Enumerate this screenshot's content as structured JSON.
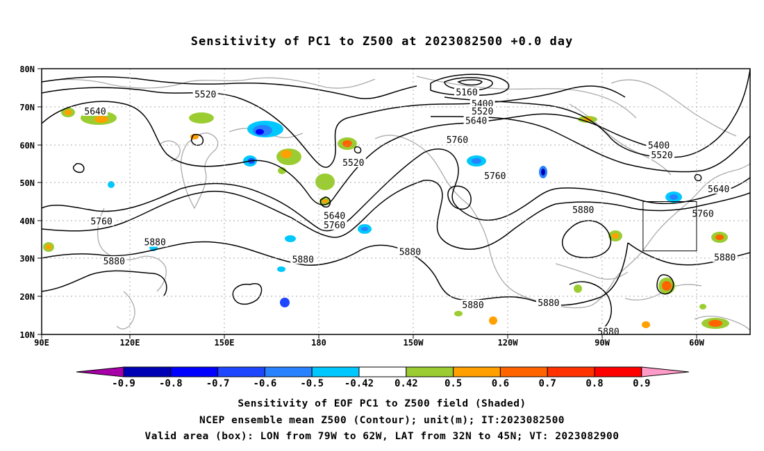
{
  "title": "Sensitivity of PC1 to Z500 at 2023082500 +0.0 day",
  "map": {
    "lat_labels": [
      "80N",
      "70N",
      "60N",
      "50N",
      "40N",
      "30N",
      "20N",
      "10N"
    ],
    "lon_labels": [
      "90E",
      "120E",
      "150E",
      "180",
      "150W",
      "120W",
      "90W",
      "60W"
    ],
    "contour_labels": [
      {
        "text": "5520",
        "lon": 142,
        "lat": 73
      },
      {
        "text": "5640",
        "lon": 107,
        "lat": 68.5
      },
      {
        "text": "5160",
        "lon": -135,
        "lat": 73.5
      },
      {
        "text": "5400",
        "lon": -130,
        "lat": 70.5
      },
      {
        "text": "5520",
        "lon": -130,
        "lat": 68.5
      },
      {
        "text": "5640",
        "lon": -132,
        "lat": 66
      },
      {
        "text": "5760",
        "lon": -138,
        "lat": 61
      },
      {
        "text": "5760",
        "lon": -126,
        "lat": 51.5
      },
      {
        "text": "5520",
        "lon": -171,
        "lat": 55
      },
      {
        "text": "5640",
        "lon": -177,
        "lat": 41
      },
      {
        "text": "5760",
        "lon": -177,
        "lat": 38.5
      },
      {
        "text": "5760",
        "lon": 109,
        "lat": 39.5
      },
      {
        "text": "5880",
        "lon": 126,
        "lat": 34
      },
      {
        "text": "5880",
        "lon": 113,
        "lat": 29
      },
      {
        "text": "5880",
        "lon": 173,
        "lat": 29.5
      },
      {
        "text": "5880",
        "lon": -153,
        "lat": 31.5
      },
      {
        "text": "5880",
        "lon": -133,
        "lat": 17.5
      },
      {
        "text": "5880",
        "lon": -109,
        "lat": 18
      },
      {
        "text": "5880",
        "lon": -98,
        "lat": 42.5
      },
      {
        "text": "5880",
        "lon": -90,
        "lat": 10.5
      },
      {
        "text": "5880",
        "lon": -53,
        "lat": 30
      },
      {
        "text": "5400",
        "lon": -74,
        "lat": 59.5
      },
      {
        "text": "5520",
        "lon": -73,
        "lat": 57
      },
      {
        "text": "5640",
        "lon": -55,
        "lat": 48
      },
      {
        "text": "5760",
        "lon": -60,
        "lat": 41.5
      }
    ],
    "valid_box": {
      "lon_min": -79,
      "lon_max": -62,
      "lat_min": 32,
      "lat_max": 45
    }
  },
  "colorbar": {
    "labels": [
      "-0.9",
      "-0.8",
      "-0.7",
      "-0.6",
      "-0.5",
      "-0.42",
      "0.42",
      "0.5",
      "0.6",
      "0.7",
      "0.8",
      "0.9"
    ],
    "colors": [
      "#a800a8",
      "#0000b4",
      "#0000ff",
      "#1e46ff",
      "#2882ff",
      "#00c8ff",
      "#ffffff",
      "#9bcd32",
      "#ffa000",
      "#ff6400",
      "#ff3200",
      "#ff0000",
      "#ff9bc8"
    ]
  },
  "captions": {
    "line1": "Sensitivity of EOF PC1 to Z500 field (Shaded)",
    "line2": "NCEP ensemble mean Z500 (Contour); unit(m); IT:2023082500",
    "line3": "Valid area (box): LON from 79W to 62W, LAT from 32N to 45N; VT: 2023082900"
  }
}
